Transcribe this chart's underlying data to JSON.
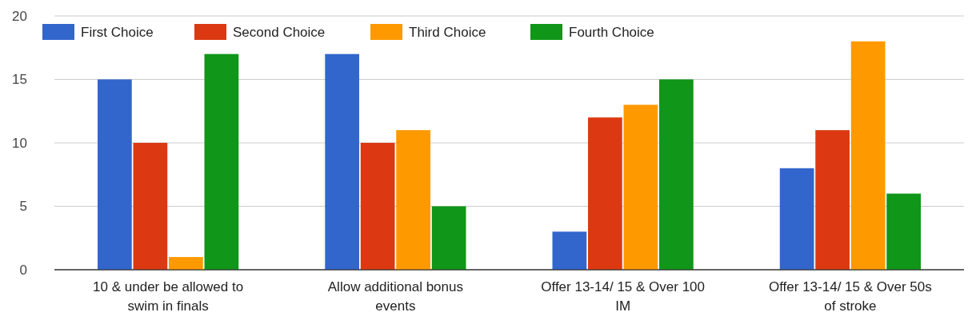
{
  "chart_data": {
    "type": "bar",
    "categories": [
      "10 & under be allowed to swim in finals",
      "Allow additional bonus events",
      "Offer 13-14/ 15 & Over 100 IM",
      "Offer 13-14/ 15 & Over 50s of stroke"
    ],
    "series": [
      {
        "name": "First Choice",
        "color": "#3366cc",
        "values": [
          15,
          17,
          3,
          8
        ]
      },
      {
        "name": "Second Choice",
        "color": "#dc3912",
        "values": [
          10,
          10,
          12,
          11
        ]
      },
      {
        "name": "Third Choice",
        "color": "#ff9900",
        "values": [
          1,
          11,
          13,
          18
        ]
      },
      {
        "name": "Fourth Choice",
        "color": "#109618",
        "values": [
          17,
          5,
          15,
          6
        ]
      }
    ],
    "ylim": [
      0,
      20
    ],
    "yticks": [
      0,
      5,
      10,
      15,
      20
    ],
    "grid": "y",
    "legend": "top left"
  }
}
